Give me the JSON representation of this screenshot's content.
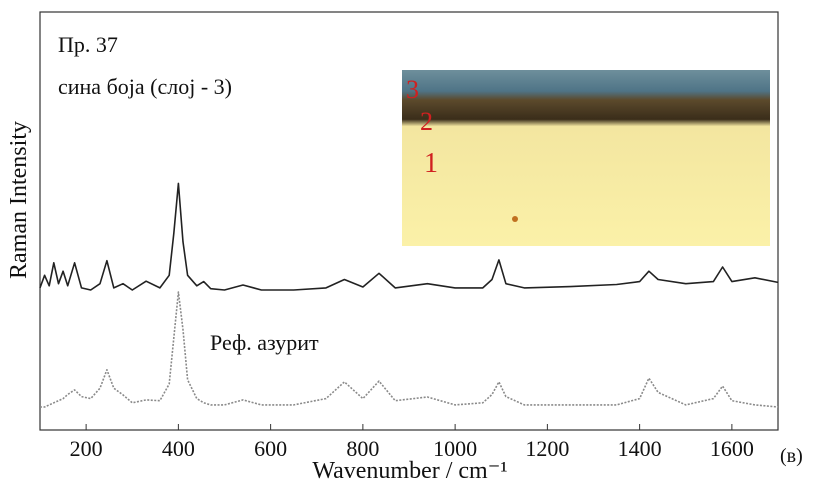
{
  "chart_data": {
    "type": "line",
    "y_label": "Raman Intensity",
    "x_label": "Wavenumber / cm⁻¹",
    "annotations": [
      "Пр. 37",
      "сина боја (слој - 3)",
      "Реф. азурит",
      "(в)"
    ],
    "inset_labels": [
      "3",
      "2",
      "1"
    ],
    "x": [
      100,
      110,
      120,
      130,
      140,
      150,
      160,
      175,
      190,
      210,
      230,
      245,
      260,
      280,
      300,
      330,
      360,
      380,
      390,
      400,
      410,
      420,
      440,
      455,
      470,
      500,
      540,
      580,
      650,
      720,
      760,
      800,
      835,
      870,
      940,
      1000,
      1060,
      1080,
      1095,
      1110,
      1150,
      1250,
      1350,
      1400,
      1420,
      1440,
      1500,
      1560,
      1580,
      1600,
      1650,
      1700
    ],
    "series": [
      {
        "name": "сина боја (слој - 3)",
        "color": "#222222",
        "dash": false,
        "values": [
          34,
          37,
          34.5,
          40,
          35,
          38,
          34.5,
          40,
          34,
          33.5,
          35,
          40.5,
          34,
          35,
          33.5,
          35.6,
          34,
          37,
          47,
          59,
          45,
          37,
          34.5,
          35.5,
          33.8,
          33.5,
          34.7,
          33.5,
          33.5,
          34,
          36,
          34.2,
          37.5,
          34,
          35,
          34,
          34,
          36,
          40.7,
          35,
          34,
          34.3,
          34.8,
          35.5,
          38,
          36,
          35,
          35.5,
          39,
          35.5,
          36.4,
          35.3
        ]
      },
      {
        "name": "Реф. азурит",
        "color": "#8a8a8a",
        "dash": true,
        "values": [
          5.5,
          5.5,
          6,
          6.5,
          7,
          7.5,
          8.5,
          9.6,
          8,
          7.5,
          10,
          14.4,
          10,
          8.4,
          6.5,
          7.2,
          7,
          11,
          22,
          33,
          24,
          12,
          7.5,
          6.5,
          6,
          6,
          7.2,
          6,
          6,
          7.5,
          11.5,
          7.5,
          11.7,
          7,
          7.9,
          6,
          6.5,
          8.5,
          11.5,
          8,
          6,
          6,
          6,
          7.5,
          12.4,
          9,
          6,
          7.5,
          10.5,
          7,
          6,
          5.5
        ]
      }
    ],
    "xlim": [
      100,
      1700
    ],
    "ylim": [
      0,
      100
    ],
    "xticks": [
      200,
      400,
      600,
      800,
      1000,
      1200,
      1400,
      1600
    ]
  }
}
